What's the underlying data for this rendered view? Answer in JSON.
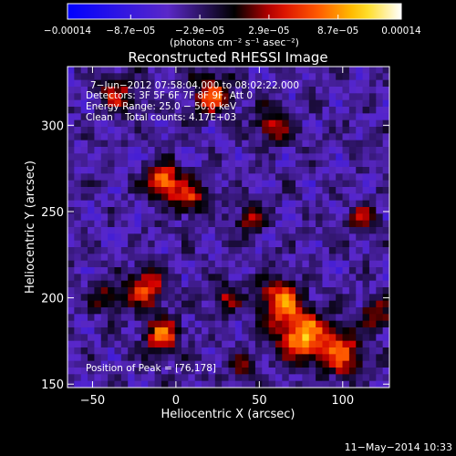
{
  "colorbar": {
    "tick_labels": [
      "−0.00014",
      "−8.7e−05",
      "−2.9e−05",
      "2.9e−05",
      "8.7e−05",
      "0.00014"
    ],
    "tick_values": [
      -0.00014,
      -8.7e-05,
      -2.9e-05,
      2.9e-05,
      8.7e-05,
      0.00014
    ],
    "range": [
      -0.00014,
      0.00014
    ],
    "units_label": "(photons cm⁻² s⁻¹ asec⁻²)"
  },
  "chart_data": {
    "type": "heatmap",
    "title": "Reconstructed RHESSI Image",
    "xlabel": "Heliocentric X (arcsec)",
    "ylabel": "Heliocentric Y (arcsec)",
    "xlim": [
      -65,
      128
    ],
    "ylim": [
      148,
      334
    ],
    "x_ticks": [
      -50,
      0,
      50,
      100
    ],
    "x_tick_labels": [
      "−50",
      "0",
      "50",
      "100"
    ],
    "y_ticks": [
      150,
      200,
      250,
      300
    ],
    "y_tick_labels": [
      "150",
      "200",
      "250",
      "300"
    ],
    "annotations": [
      "7−Jun−2012 07:58:04.000 to 08:02:22.000",
      "Detectors: 3F 5F 6F 7F 8F 9F, Att 0",
      "Energy Range: 25.0 − 50.0 keV",
      "Clean    Total counts: 4.17E+03"
    ],
    "peak_label": "Position of Peak = [76,178]",
    "peak": [
      76,
      178
    ],
    "sources": [
      {
        "x": 76,
        "y": 178,
        "peak": 0.00014,
        "sigma": 10
      },
      {
        "x": 62,
        "y": 198,
        "peak": 0.00011,
        "sigma": 9
      },
      {
        "x": 100,
        "y": 168,
        "peak": 0.0001,
        "sigma": 9
      },
      {
        "x": -8,
        "y": 268,
        "peak": 0.00012,
        "sigma": 7
      },
      {
        "x": 8,
        "y": 258,
        "peak": 9e-05,
        "sigma": 7
      },
      {
        "x": -18,
        "y": 205,
        "peak": 0.0001,
        "sigma": 8
      },
      {
        "x": -8,
        "y": 178,
        "peak": 0.00011,
        "sigma": 7
      },
      {
        "x": 22,
        "y": 318,
        "peak": 0.0001,
        "sigma": 8
      },
      {
        "x": -35,
        "y": 318,
        "peak": 7e-05,
        "sigma": 8
      },
      {
        "x": 58,
        "y": 300,
        "peak": 8e-05,
        "sigma": 7
      },
      {
        "x": 44,
        "y": 245,
        "peak": 7e-05,
        "sigma": 6
      },
      {
        "x": 112,
        "y": 245,
        "peak": 7e-05,
        "sigma": 6
      },
      {
        "x": 120,
        "y": 190,
        "peak": 8e-05,
        "sigma": 6
      },
      {
        "x": 30,
        "y": 200,
        "peak": 6e-05,
        "sigma": 6
      },
      {
        "x": -42,
        "y": 200,
        "peak": 6e-05,
        "sigma": 6
      },
      {
        "x": 40,
        "y": 160,
        "peak": 5e-05,
        "sigma": 6
      }
    ]
  },
  "footer": {
    "timestamp": "11−May−2014 10:33"
  }
}
